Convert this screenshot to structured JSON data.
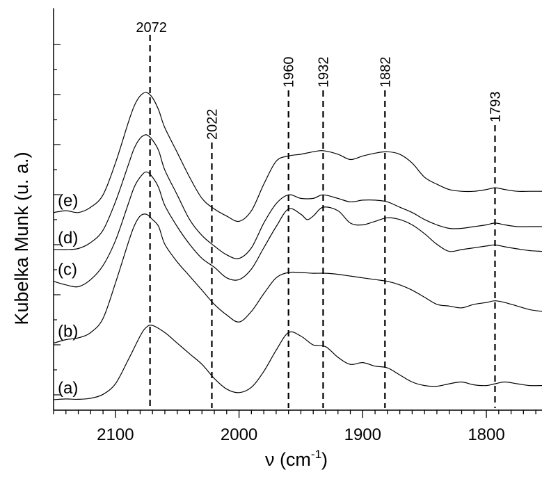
{
  "chart_data": {
    "type": "line",
    "title": "",
    "xlabel": "ν (cm-1)",
    "ylabel": "Kubelka Munk (u. a.)",
    "x_reversed": true,
    "xlim": [
      2150,
      1755
    ],
    "ylim": [
      0,
      1
    ],
    "xticks": [
      2100,
      2000,
      1900,
      1800
    ],
    "xtick_labels": [
      "2100",
      "2000",
      "1900",
      "1800"
    ],
    "y_ticks_unlabeled": true,
    "grid": false,
    "peak_markers": [
      {
        "x": 2072,
        "label": "2072"
      },
      {
        "x": 2022,
        "label": "2022"
      },
      {
        "x": 1960,
        "label": "1960"
      },
      {
        "x": 1932,
        "label": "1932"
      },
      {
        "x": 1882,
        "label": "1882"
      },
      {
        "x": 1793,
        "label": "1793"
      }
    ],
    "series": [
      {
        "name": "(a)",
        "x": [
          2150,
          2140,
          2130,
          2120,
          2110,
          2100,
          2090,
          2080,
          2075,
          2070,
          2060,
          2050,
          2040,
          2030,
          2020,
          2010,
          2000,
          1990,
          1980,
          1970,
          1960,
          1950,
          1940,
          1930,
          1920,
          1910,
          1900,
          1890,
          1880,
          1870,
          1860,
          1850,
          1840,
          1830,
          1820,
          1810,
          1800,
          1793,
          1785,
          1775,
          1765,
          1755
        ],
        "y": [
          0.01,
          0.012,
          0.011,
          0.014,
          0.025,
          0.055,
          0.12,
          0.19,
          0.215,
          0.22,
          0.2,
          0.17,
          0.14,
          0.11,
          0.07,
          0.04,
          0.03,
          0.045,
          0.09,
          0.15,
          0.2,
          0.19,
          0.165,
          0.16,
          0.13,
          0.11,
          0.115,
          0.105,
          0.1,
          0.08,
          0.06,
          0.05,
          0.048,
          0.055,
          0.06,
          0.052,
          0.05,
          0.055,
          0.06,
          0.055,
          0.05,
          0.05
        ]
      },
      {
        "name": "(b)",
        "x": [
          2150,
          2140,
          2130,
          2120,
          2110,
          2100,
          2090,
          2085,
          2080,
          2075,
          2070,
          2065,
          2060,
          2050,
          2040,
          2030,
          2020,
          2010,
          2000,
          1990,
          1980,
          1970,
          1960,
          1950,
          1940,
          1930,
          1920,
          1910,
          1900,
          1890,
          1880,
          1870,
          1860,
          1850,
          1840,
          1830,
          1820,
          1810,
          1800,
          1793,
          1785,
          1775,
          1765,
          1755
        ],
        "y": [
          0.17,
          0.18,
          0.185,
          0.2,
          0.24,
          0.34,
          0.45,
          0.5,
          0.53,
          0.535,
          0.52,
          0.5,
          0.45,
          0.4,
          0.36,
          0.32,
          0.28,
          0.25,
          0.23,
          0.26,
          0.31,
          0.355,
          0.37,
          0.37,
          0.368,
          0.368,
          0.365,
          0.36,
          0.355,
          0.35,
          0.345,
          0.335,
          0.32,
          0.3,
          0.28,
          0.275,
          0.27,
          0.28,
          0.285,
          0.29,
          0.285,
          0.275,
          0.265,
          0.26
        ]
      },
      {
        "name": "(c)",
        "x": [
          2150,
          2140,
          2130,
          2120,
          2110,
          2100,
          2090,
          2085,
          2080,
          2075,
          2070,
          2065,
          2060,
          2050,
          2040,
          2030,
          2020,
          2010,
          2000,
          1990,
          1980,
          1970,
          1960,
          1950,
          1945,
          1940,
          1932,
          1920,
          1910,
          1900,
          1890,
          1880,
          1870,
          1860,
          1850,
          1840,
          1830,
          1820,
          1810,
          1800,
          1793,
          1785,
          1775,
          1765,
          1755
        ],
        "y": [
          0.345,
          0.335,
          0.33,
          0.35,
          0.39,
          0.46,
          0.56,
          0.61,
          0.64,
          0.655,
          0.64,
          0.61,
          0.56,
          0.5,
          0.45,
          0.41,
          0.385,
          0.355,
          0.35,
          0.38,
          0.44,
          0.5,
          0.55,
          0.535,
          0.52,
          0.53,
          0.555,
          0.545,
          0.51,
          0.505,
          0.515,
          0.525,
          0.52,
          0.505,
          0.48,
          0.45,
          0.43,
          0.435,
          0.44,
          0.445,
          0.448,
          0.443,
          0.437,
          0.432,
          0.43
        ]
      },
      {
        "name": "(d)",
        "x": [
          2150,
          2140,
          2130,
          2120,
          2110,
          2100,
          2090,
          2085,
          2080,
          2075,
          2070,
          2065,
          2060,
          2050,
          2040,
          2030,
          2020,
          2010,
          2000,
          1990,
          1980,
          1970,
          1960,
          1950,
          1940,
          1932,
          1920,
          1910,
          1900,
          1890,
          1880,
          1870,
          1860,
          1850,
          1840,
          1830,
          1820,
          1810,
          1800,
          1793,
          1785,
          1775,
          1765,
          1755
        ],
        "y": [
          0.435,
          0.435,
          0.438,
          0.455,
          0.49,
          0.57,
          0.67,
          0.72,
          0.75,
          0.76,
          0.745,
          0.715,
          0.66,
          0.59,
          0.52,
          0.475,
          0.445,
          0.42,
          0.41,
          0.44,
          0.51,
          0.565,
          0.59,
          0.58,
          0.58,
          0.59,
          0.58,
          0.57,
          0.575,
          0.575,
          0.57,
          0.555,
          0.54,
          0.52,
          0.505,
          0.495,
          0.495,
          0.5,
          0.505,
          0.51,
          0.505,
          0.5,
          0.5,
          0.5
        ]
      },
      {
        "name": "(e)",
        "x": [
          2150,
          2140,
          2130,
          2120,
          2110,
          2100,
          2090,
          2085,
          2080,
          2075,
          2070,
          2065,
          2060,
          2050,
          2040,
          2030,
          2020,
          2010,
          2000,
          1990,
          1980,
          1970,
          1960,
          1950,
          1940,
          1932,
          1920,
          1910,
          1900,
          1890,
          1880,
          1870,
          1860,
          1850,
          1840,
          1830,
          1820,
          1810,
          1800,
          1793,
          1785,
          1775,
          1765,
          1755
        ],
        "y": [
          0.54,
          0.545,
          0.54,
          0.555,
          0.59,
          0.68,
          0.79,
          0.84,
          0.87,
          0.88,
          0.865,
          0.83,
          0.78,
          0.71,
          0.64,
          0.58,
          0.55,
          0.53,
          0.515,
          0.545,
          0.62,
          0.685,
          0.7,
          0.705,
          0.712,
          0.715,
          0.705,
          0.69,
          0.7,
          0.708,
          0.712,
          0.705,
          0.68,
          0.64,
          0.62,
          0.605,
          0.6,
          0.6,
          0.605,
          0.61,
          0.605,
          0.6,
          0.6,
          0.6
        ]
      }
    ]
  }
}
